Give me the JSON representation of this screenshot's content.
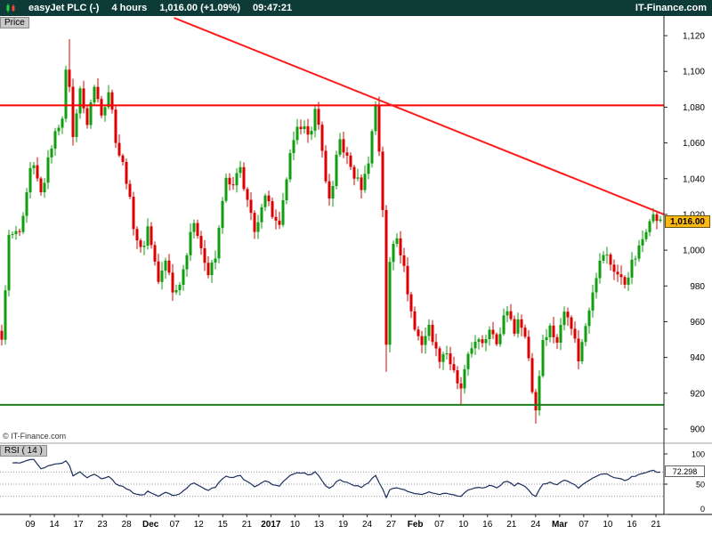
{
  "header": {
    "symbol": "easyJet PLC (-)",
    "timeframe": "4 hours",
    "price": "1,016.00 (+1.09%)",
    "time": "09:47:21",
    "brand": "IT-Finance.com"
  },
  "price_panel": {
    "tab": "Price",
    "copyright": "© IT-Finance.com",
    "last_price_label": "1,016.00",
    "tick_labels": [
      "1,120",
      "1,100",
      "1,080",
      "1,060",
      "1,040",
      "1,020",
      "1,000",
      "980",
      "960",
      "940",
      "920",
      "900"
    ],
    "tick_values": [
      1120,
      1100,
      1080,
      1060,
      1040,
      1020,
      1000,
      980,
      960,
      940,
      920,
      900
    ]
  },
  "rsi_panel": {
    "tab": "RSI ( 14 )",
    "value_label": "72.298",
    "tick_labels": [
      "100",
      "50",
      "0"
    ],
    "tick_values": [
      100,
      50,
      0
    ]
  },
  "x_axis": {
    "labels": [
      "09",
      "14",
      "17",
      "23",
      "28",
      "Dec",
      "07",
      "12",
      "15",
      "21",
      "2017",
      "10",
      "13",
      "19",
      "24",
      "27",
      "Feb",
      "07",
      "10",
      "16",
      "21",
      "24",
      "Mar",
      "07",
      "10",
      "16",
      "21"
    ],
    "bold_indices": [
      5,
      10,
      16,
      22
    ]
  },
  "colors": {
    "header_bg": "#0c3b38",
    "up": "#0f9e0f",
    "down": "#dd0000",
    "resistance": "#ff0000",
    "support": "#1e7d1e",
    "trendline": "#ff1a1a",
    "rsi_line": "#1b2f5e",
    "price_badge_bg": "#fdb913",
    "rsi_badge_bg": "#ffffff"
  },
  "chart_data": {
    "type": "candlestick",
    "symbol": "easyJet PLC",
    "timeframe": "4 hours",
    "last_price": 1016.0,
    "change_pct": "+1.09%",
    "quote_time": "09:47:21",
    "price_axis": {
      "min": 900,
      "max": 1120,
      "tick_step": 20
    },
    "price_path": [
      [
        0.0,
        948
      ],
      [
        0.01,
        1005
      ],
      [
        0.03,
        1012
      ],
      [
        0.045,
        1048
      ],
      [
        0.06,
        1030
      ],
      [
        0.075,
        1060
      ],
      [
        0.092,
        1075
      ],
      [
        0.1,
        1108
      ],
      [
        0.108,
        1062
      ],
      [
        0.118,
        1095
      ],
      [
        0.128,
        1068
      ],
      [
        0.14,
        1090
      ],
      [
        0.152,
        1078
      ],
      [
        0.163,
        1092
      ],
      [
        0.175,
        1056
      ],
      [
        0.188,
        1042
      ],
      [
        0.2,
        1016
      ],
      [
        0.212,
        998
      ],
      [
        0.222,
        1012
      ],
      [
        0.238,
        983
      ],
      [
        0.25,
        996
      ],
      [
        0.262,
        972
      ],
      [
        0.275,
        988
      ],
      [
        0.288,
        1016
      ],
      [
        0.3,
        1008
      ],
      [
        0.312,
        984
      ],
      [
        0.325,
        997
      ],
      [
        0.338,
        1040
      ],
      [
        0.35,
        1032
      ],
      [
        0.362,
        1046
      ],
      [
        0.374,
        1028
      ],
      [
        0.386,
        1004
      ],
      [
        0.398,
        1034
      ],
      [
        0.41,
        1022
      ],
      [
        0.422,
        1012
      ],
      [
        0.435,
        1046
      ],
      [
        0.448,
        1066
      ],
      [
        0.458,
        1076
      ],
      [
        0.468,
        1058
      ],
      [
        0.478,
        1082
      ],
      [
        0.49,
        1042
      ],
      [
        0.5,
        1028
      ],
      [
        0.512,
        1062
      ],
      [
        0.524,
        1050
      ],
      [
        0.536,
        1042
      ],
      [
        0.548,
        1036
      ],
      [
        0.558,
        1052
      ],
      [
        0.568,
        1082
      ],
      [
        0.578,
        1030
      ],
      [
        0.584,
        944
      ],
      [
        0.59,
        1002
      ],
      [
        0.6,
        1008
      ],
      [
        0.614,
        982
      ],
      [
        0.626,
        958
      ],
      [
        0.638,
        948
      ],
      [
        0.65,
        956
      ],
      [
        0.662,
        940
      ],
      [
        0.674,
        946
      ],
      [
        0.686,
        930
      ],
      [
        0.695,
        918
      ],
      [
        0.706,
        938
      ],
      [
        0.718,
        952
      ],
      [
        0.73,
        944
      ],
      [
        0.742,
        958
      ],
      [
        0.754,
        950
      ],
      [
        0.766,
        968
      ],
      [
        0.778,
        954
      ],
      [
        0.788,
        962
      ],
      [
        0.798,
        948
      ],
      [
        0.806,
        920
      ],
      [
        0.812,
        908
      ],
      [
        0.82,
        948
      ],
      [
        0.832,
        958
      ],
      [
        0.844,
        950
      ],
      [
        0.856,
        968
      ],
      [
        0.866,
        956
      ],
      [
        0.876,
        940
      ],
      [
        0.888,
        962
      ],
      [
        0.9,
        982
      ],
      [
        0.915,
        1000
      ],
      [
        0.93,
        990
      ],
      [
        0.945,
        979
      ],
      [
        0.958,
        994
      ],
      [
        0.97,
        1004
      ],
      [
        0.984,
        1018
      ],
      [
        1.0,
        1016
      ]
    ],
    "special_wicks": [
      [
        0.1,
        "high",
        1118
      ],
      [
        0.584,
        "low",
        932
      ],
      [
        0.695,
        "low",
        913
      ],
      [
        0.812,
        "low",
        903
      ],
      [
        0.99,
        "high",
        1023
      ]
    ],
    "levels": {
      "resistance": 1081,
      "support": 913.5
    },
    "trendline": {
      "from_t": 0.262,
      "from_price": 1130,
      "to_t": 1.0,
      "to_price": 1020
    },
    "indicator": {
      "type": "RSI",
      "period": 14,
      "last": 72.298,
      "range": [
        0,
        100
      ],
      "dotted_levels": [
        70,
        50,
        30
      ]
    }
  }
}
